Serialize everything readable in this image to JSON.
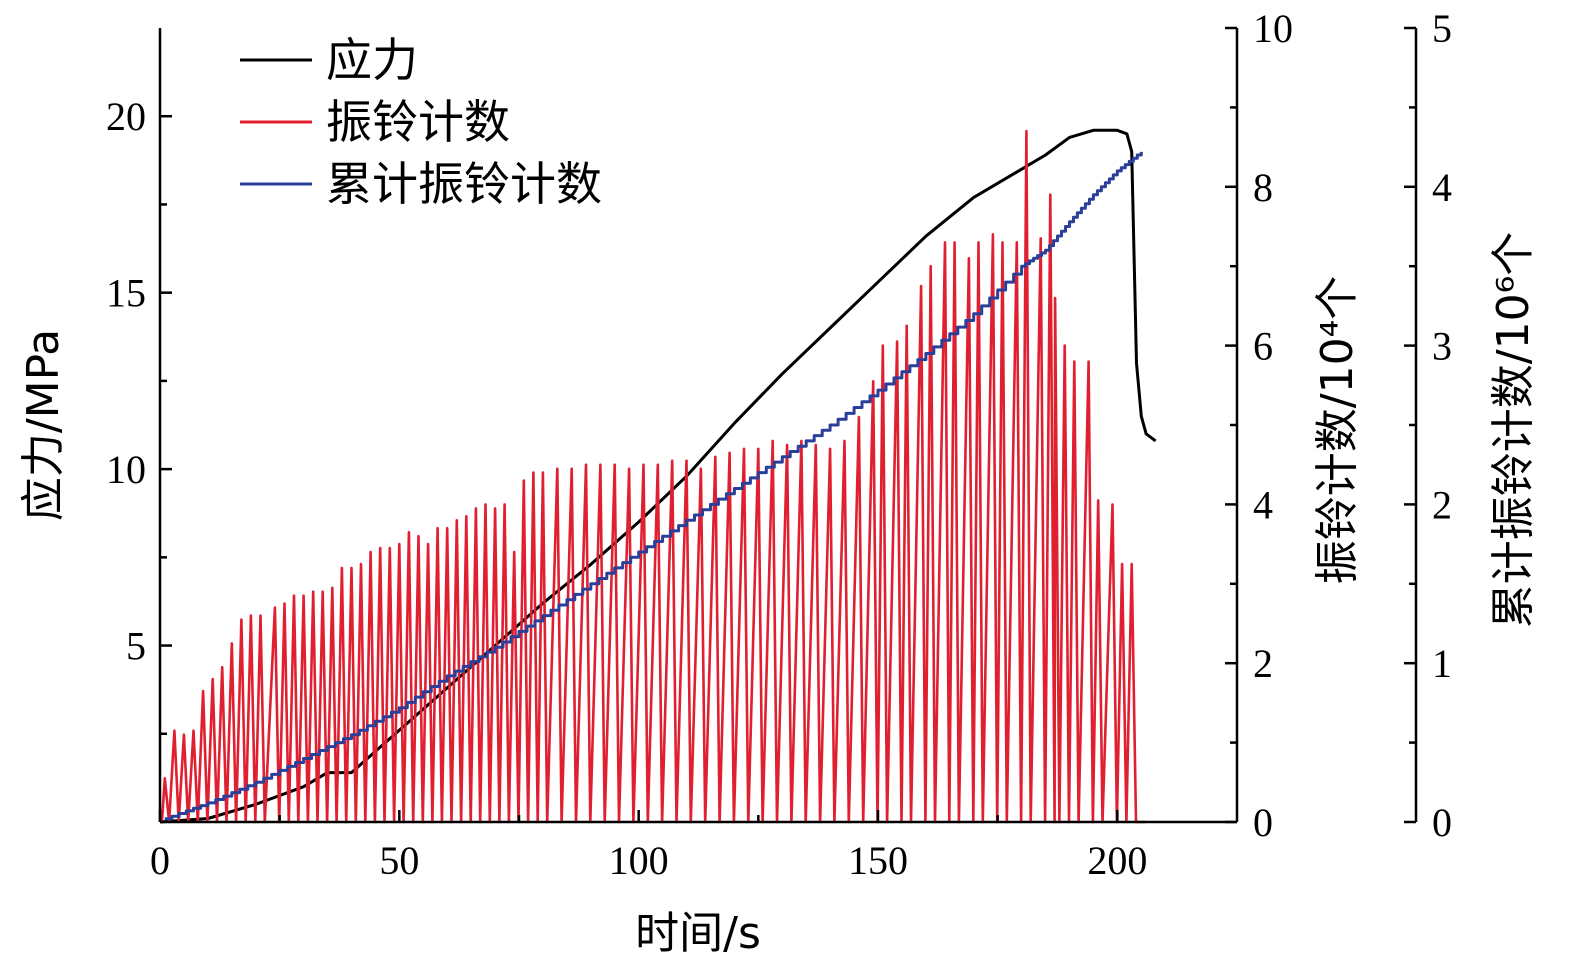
{
  "chart_data": {
    "type": "line",
    "grid": false,
    "legend_position": "top-left",
    "xlabel": "时间/s",
    "ylabel_left": "应力/MPa",
    "ylabel_right1": "振铃计数/10⁴个",
    "ylabel_right2": "累计振铃计数/10⁶个",
    "axes": {
      "x": {
        "range": [
          0,
          225
        ],
        "ticks": [
          "0",
          "50",
          "100",
          "150",
          "200"
        ]
      },
      "y_left": {
        "range": [
          0,
          22.5
        ],
        "ticks": [
          "5",
          "10",
          "15",
          "20"
        ]
      },
      "y_right1": {
        "range": [
          0,
          10
        ],
        "ticks": [
          "0",
          "2",
          "4",
          "6",
          "8",
          "10"
        ]
      },
      "y_right2": {
        "range": [
          0,
          5
        ],
        "ticks": [
          "0",
          "1",
          "2",
          "3",
          "4",
          "5"
        ]
      }
    },
    "series": [
      {
        "name": "应力",
        "axis": "y_left",
        "color": "#000000",
        "x": [
          0,
          10,
          20,
          30,
          35,
          40,
          50,
          60,
          70,
          80,
          90,
          100,
          110,
          120,
          130,
          140,
          150,
          160,
          170,
          180,
          185,
          190,
          195,
          200,
          202,
          203,
          204,
          205,
          206,
          208
        ],
        "y": [
          0,
          0.1,
          0.5,
          1.0,
          1.4,
          1.4,
          2.6,
          3.8,
          5.0,
          6.2,
          7.3,
          8.5,
          9.8,
          11.3,
          12.7,
          14.0,
          15.3,
          16.6,
          17.7,
          18.5,
          18.9,
          19.4,
          19.6,
          19.6,
          19.5,
          19.0,
          13.0,
          11.5,
          11.0,
          10.8
        ]
      },
      {
        "name": "振铃计数",
        "axis": "y_right1",
        "color": "#e02030",
        "x": [
          1,
          3,
          5,
          7,
          9,
          11,
          13,
          15,
          17,
          19,
          21,
          24,
          26,
          28,
          30,
          32,
          34,
          36,
          38,
          40,
          42,
          44,
          46,
          48,
          50,
          52,
          54,
          56,
          58,
          60,
          62,
          64,
          66,
          68,
          70,
          72,
          74,
          76,
          78,
          80,
          83,
          86,
          89,
          92,
          95,
          98,
          101,
          104,
          107,
          110,
          113,
          116,
          119,
          122,
          125,
          128,
          131,
          134,
          137,
          140,
          143,
          146,
          149,
          151,
          154,
          156,
          159,
          161,
          164,
          166,
          169,
          171,
          174,
          176,
          179,
          181,
          184,
          186,
          187,
          189,
          191,
          194,
          196,
          199,
          201,
          203,
          205
        ],
        "y": [
          0.55,
          1.15,
          1.1,
          1.15,
          1.65,
          1.8,
          1.95,
          2.25,
          2.55,
          2.6,
          2.6,
          2.7,
          2.75,
          2.85,
          2.85,
          2.9,
          2.9,
          2.95,
          3.2,
          3.2,
          3.25,
          3.4,
          3.45,
          3.45,
          3.5,
          3.65,
          3.6,
          3.5,
          3.7,
          3.7,
          3.8,
          3.85,
          3.95,
          4.0,
          3.95,
          4.0,
          3.4,
          4.3,
          4.4,
          4.4,
          4.45,
          4.45,
          4.5,
          4.5,
          4.5,
          4.45,
          4.5,
          4.5,
          4.55,
          4.55,
          4.45,
          4.6,
          4.65,
          4.7,
          4.7,
          4.8,
          4.75,
          4.8,
          4.75,
          4.7,
          4.8,
          5.1,
          5.55,
          6.0,
          6.05,
          6.25,
          6.75,
          7.0,
          7.3,
          7.3,
          7.1,
          7.3,
          7.4,
          7.3,
          7.3,
          8.7,
          7.35,
          7.9,
          6.6,
          6.0,
          5.8,
          5.8,
          4.05,
          4.0,
          3.25,
          3.25,
          0
        ],
        "baseline": 0
      },
      {
        "name": "累计振铃计数",
        "axis": "y_right2",
        "color": "#2a3f9a",
        "x": [
          1,
          10,
          20,
          30,
          40,
          50,
          60,
          70,
          80,
          90,
          100,
          110,
          120,
          130,
          140,
          150,
          160,
          170,
          180,
          185,
          190,
          195,
          200,
          205
        ],
        "y": [
          0.02,
          0.12,
          0.25,
          0.4,
          0.55,
          0.72,
          0.92,
          1.1,
          1.3,
          1.5,
          1.7,
          1.9,
          2.1,
          2.3,
          2.5,
          2.72,
          2.95,
          3.2,
          3.5,
          3.6,
          3.78,
          3.95,
          4.1,
          4.22
        ]
      }
    ]
  }
}
